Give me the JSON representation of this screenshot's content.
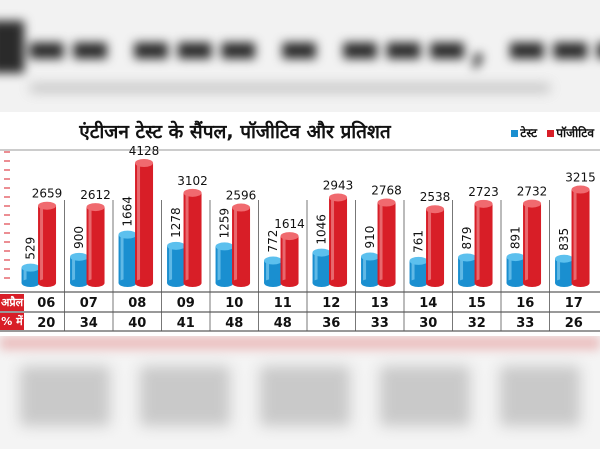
{
  "header": {
    "title": "एंटीजन टेस्ट के सैंपल, पॉजीटिव और प्रतिशत",
    "legend": [
      {
        "name": "टेस्ट",
        "color": "#1a8fd0"
      },
      {
        "name": "पॉजीटिव",
        "color": "#d81e27"
      }
    ]
  },
  "row_labels": {
    "date": "अप्रैल",
    "percent": "% में"
  },
  "chart_data": {
    "type": "bar",
    "title": "एंटीजन टेस्ट के सैंपल, पॉजीटिव और प्रतिशत",
    "categories": [
      "06",
      "07",
      "08",
      "09",
      "10",
      "11",
      "12",
      "13",
      "14",
      "15",
      "16",
      "17"
    ],
    "series": [
      {
        "name": "टेस्ट",
        "color": "#1a8fd0",
        "values": [
          529,
          900,
          1664,
          1278,
          1259,
          772,
          1046,
          910,
          761,
          879,
          891,
          835
        ]
      },
      {
        "name": "पॉजीटिव",
        "color": "#d81e27",
        "values": [
          2659,
          2612,
          4128,
          3102,
          2596,
          1614,
          2943,
          2768,
          2538,
          2723,
          2732,
          3215
        ]
      }
    ],
    "percent": [
      "20",
      "34",
      "40",
      "41",
      "48",
      "48",
      "36",
      "33",
      "30",
      "32",
      "33",
      "26"
    ],
    "ylim": [
      0,
      4128
    ],
    "grid": false,
    "legend_position": "top-right"
  }
}
